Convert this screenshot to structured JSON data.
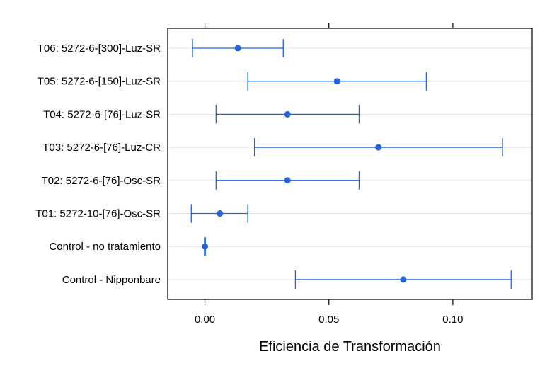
{
  "chart_data": {
    "type": "dot-errorbar",
    "xlabel": "Eficiencia de Transformación",
    "xlim": [
      -0.015,
      0.132
    ],
    "xticks": [
      0.0,
      0.05,
      0.1
    ],
    "xtick_labels": [
      "0.00",
      "0.05",
      "0.10"
    ],
    "grid": "horizontal",
    "color": "#2563d9",
    "categories": [
      {
        "label": "T06: 5272-6-[300]-Luz-SR",
        "value": 0.0133,
        "lower": -0.005,
        "upper": 0.0316
      },
      {
        "label": "T05: 5272-6-[150]-Luz-SR",
        "value": 0.0533,
        "lower": 0.0173,
        "upper": 0.0893
      },
      {
        "label": "T04: 5272-6-[76]-Luz-SR",
        "value": 0.0333,
        "lower": 0.0045,
        "upper": 0.0622
      },
      {
        "label": "T03: 5272-6-[76]-Luz-CR",
        "value": 0.07,
        "lower": 0.02,
        "upper": 0.12
      },
      {
        "label": "T02: 5272-6-[76]-Osc-SR",
        "value": 0.0333,
        "lower": 0.0045,
        "upper": 0.0622
      },
      {
        "label": "T01: 5272-10-[76]-Osc-SR",
        "value": 0.006,
        "lower": -0.0055,
        "upper": 0.0173
      },
      {
        "label": "Control - no tratamiento",
        "value": 0.0,
        "lower": -0.0002,
        "upper": 0.0002
      },
      {
        "label": "Control - Nipponbare",
        "value": 0.08,
        "lower": 0.0365,
        "upper": 0.1235
      }
    ]
  }
}
